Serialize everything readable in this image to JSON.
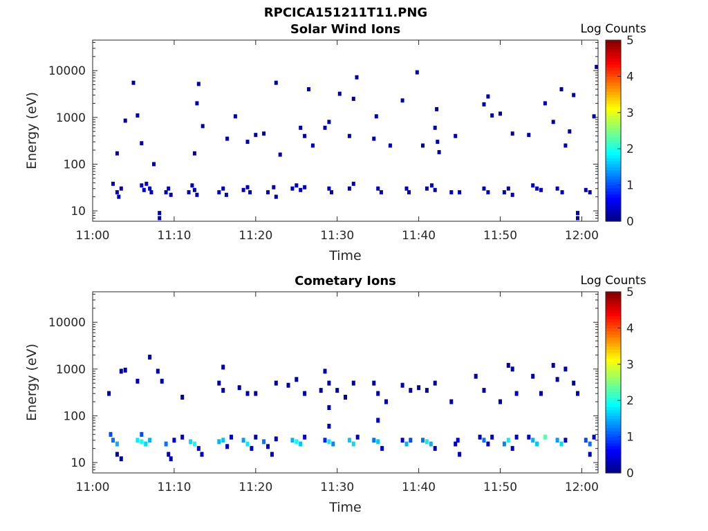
{
  "figure": {
    "filename": "RPCICA151211T11.PNG"
  },
  "colormap": {
    "name": "jet",
    "stops": [
      "#00007f",
      "#0000ff",
      "#007fff",
      "#00ffff",
      "#7fff7f",
      "#ffff00",
      "#ff7f00",
      "#ff0000",
      "#7f0000"
    ]
  },
  "chart_data": [
    {
      "type": "heatmap",
      "title": "Solar Wind Ions",
      "xlabel": "Time",
      "ylabel": "Energy (eV)",
      "yscale": "log",
      "ylim": [
        6,
        45000
      ],
      "xlim": [
        "11:00",
        "12:02"
      ],
      "xticks": [
        "11:00",
        "11:10",
        "11:20",
        "11:30",
        "11:40",
        "11:50",
        "12:00"
      ],
      "yticks": [
        10,
        100,
        1000,
        10000
      ],
      "colorbar": {
        "label": "Log Counts",
        "range": [
          0,
          5
        ],
        "ticks": [
          0,
          1,
          2,
          3,
          4,
          5
        ]
      },
      "grid": false,
      "points": [
        [
          "11:02.5",
          38,
          0.3
        ],
        [
          "11:03",
          25,
          0.3
        ],
        [
          "11:03.2",
          20,
          0.3
        ],
        [
          "11:03.5",
          30,
          0.3
        ],
        [
          "11:06",
          35,
          0.4
        ],
        [
          "11:06.3",
          28,
          0.4
        ],
        [
          "11:06.6",
          38,
          0.4
        ],
        [
          "11:07",
          30,
          0.3
        ],
        [
          "11:07.2",
          25,
          0.3
        ],
        [
          "11:09",
          25,
          0.3
        ],
        [
          "11:09.3",
          30,
          0.3
        ],
        [
          "11:09.6",
          22,
          0.3
        ],
        [
          "11:11.8",
          25,
          0.3
        ],
        [
          "11:12.2",
          35,
          0.3
        ],
        [
          "11:12.5",
          28,
          0.3
        ],
        [
          "11:12.8",
          22,
          0.3
        ],
        [
          "11:15.5",
          25,
          0.3
        ],
        [
          "11:16",
          30,
          0.3
        ],
        [
          "11:16.4",
          22,
          0.3
        ],
        [
          "11:18.5",
          28,
          0.3
        ],
        [
          "11:19",
          32,
          0.3
        ],
        [
          "11:19.3",
          25,
          0.3
        ],
        [
          "11:21.5",
          25,
          0.3
        ],
        [
          "11:22.2",
          32,
          0.3
        ],
        [
          "11:22.5",
          20,
          0.3
        ],
        [
          "11:24.5",
          30,
          0.3
        ],
        [
          "11:25",
          35,
          0.3
        ],
        [
          "11:25.5",
          28,
          0.3
        ],
        [
          "11:26",
          32,
          0.3
        ],
        [
          "11:29",
          30,
          0.3
        ],
        [
          "11:29.3",
          25,
          0.3
        ],
        [
          "11:31.5",
          30,
          0.3
        ],
        [
          "11:32",
          38,
          0.3
        ],
        [
          "11:35",
          30,
          0.3
        ],
        [
          "11:35.4",
          25,
          0.3
        ],
        [
          "11:38.5",
          30,
          0.3
        ],
        [
          "11:38.8",
          25,
          0.3
        ],
        [
          "11:41",
          30,
          0.3
        ],
        [
          "11:41.6",
          35,
          0.3
        ],
        [
          "11:42",
          28,
          0.3
        ],
        [
          "11:44",
          25,
          0.3
        ],
        [
          "11:45",
          25,
          0.3
        ],
        [
          "11:48",
          30,
          0.3
        ],
        [
          "11:48.5",
          25,
          0.3
        ],
        [
          "11:50.5",
          25,
          0.3
        ],
        [
          "11:51",
          30,
          0.3
        ],
        [
          "11:51.5",
          22,
          0.3
        ],
        [
          "11:54",
          35,
          0.3
        ],
        [
          "11:54.5",
          30,
          0.3
        ],
        [
          "11:55",
          28,
          0.3
        ],
        [
          "11:57",
          30,
          0.3
        ],
        [
          "11:57.6",
          25,
          0.3
        ],
        [
          "12:00.5",
          28,
          0.3
        ],
        [
          "12:01",
          25,
          0.3
        ],
        [
          "11:05",
          5500,
          0.2
        ],
        [
          "11:05.5",
          1100,
          0.2
        ],
        [
          "11:04",
          850,
          0.2
        ],
        [
          "11:03",
          170,
          0.2
        ],
        [
          "11:06",
          280,
          0.2
        ],
        [
          "11:07.5",
          100,
          0.2
        ],
        [
          "11:08.2",
          9,
          0.2
        ],
        [
          "11:08.2",
          7,
          0.2
        ],
        [
          "11:13",
          5200,
          0.2
        ],
        [
          "11:12.8",
          2000,
          0.2
        ],
        [
          "11:13.5",
          650,
          0.2
        ],
        [
          "11:12.5",
          170,
          0.2
        ],
        [
          "11:17.5",
          1050,
          0.2
        ],
        [
          "11:16.5",
          350,
          0.2
        ],
        [
          "11:19",
          300,
          0.2
        ],
        [
          "11:20",
          420,
          0.2
        ],
        [
          "11:22.5",
          5500,
          0.2
        ],
        [
          "11:21",
          450,
          0.2
        ],
        [
          "11:23",
          160,
          0.2
        ],
        [
          "11:25.5",
          600,
          0.2
        ],
        [
          "11:26",
          400,
          0.2
        ],
        [
          "11:26.5",
          4000,
          0.2
        ],
        [
          "11:27",
          250,
          0.2
        ],
        [
          "11:28.5",
          600,
          0.2
        ],
        [
          "11:29",
          800,
          0.2
        ],
        [
          "11:30.3",
          3200,
          0.2
        ],
        [
          "11:32.4",
          7200,
          0.2
        ],
        [
          "11:32",
          2500,
          0.2
        ],
        [
          "11:31.5",
          400,
          0.2
        ],
        [
          "11:34.8",
          1050,
          0.2
        ],
        [
          "11:34.5",
          350,
          0.2
        ],
        [
          "11:36.5",
          250,
          0.2
        ],
        [
          "11:39.8",
          9200,
          0.2
        ],
        [
          "11:38",
          2300,
          0.2
        ],
        [
          "11:40.5",
          250,
          0.2
        ],
        [
          "11:42.2",
          1500,
          0.2
        ],
        [
          "11:42",
          600,
          0.2
        ],
        [
          "11:42.3",
          300,
          0.2
        ],
        [
          "11:42.5",
          180,
          0.2
        ],
        [
          "11:44.5",
          400,
          0.2
        ],
        [
          "11:48.5",
          2800,
          0.2
        ],
        [
          "11:48",
          1900,
          0.2
        ],
        [
          "11:49",
          1100,
          0.2
        ],
        [
          "11:50",
          1200,
          0.2
        ],
        [
          "11:51.5",
          450,
          0.2
        ],
        [
          "11:53.5",
          420,
          0.2
        ],
        [
          "11:55.5",
          2000,
          0.2
        ],
        [
          "11:56.5",
          800,
          0.2
        ],
        [
          "11:57.5",
          4000,
          0.2
        ],
        [
          "11:58.5",
          500,
          0.2
        ],
        [
          "11:59",
          3000,
          0.2
        ],
        [
          "11:58",
          250,
          0.2
        ],
        [
          "12:01.5",
          1050,
          0.2
        ],
        [
          "12:01.8",
          12000,
          0.2
        ],
        [
          "11:59.5",
          7,
          0.2
        ],
        [
          "11:59.5",
          9,
          0.2
        ]
      ]
    },
    {
      "type": "heatmap",
      "title": "Cometary Ions",
      "xlabel": "Time",
      "ylabel": "Energy (eV)",
      "yscale": "log",
      "ylim": [
        6,
        45000
      ],
      "xlim": [
        "11:00",
        "12:02"
      ],
      "xticks": [
        "11:00",
        "11:10",
        "11:20",
        "11:30",
        "11:40",
        "11:50",
        "12:00"
      ],
      "yticks": [
        10,
        100,
        1000,
        10000
      ],
      "colorbar": {
        "label": "Log Counts",
        "range": [
          0,
          5
        ],
        "ticks": [
          0,
          1,
          2,
          3,
          4,
          5
        ]
      },
      "grid": false,
      "points": [
        [
          "11:02.5",
          30,
          1.2
        ],
        [
          "11:03",
          25,
          1.5
        ],
        [
          "11:03",
          15,
          0.2
        ],
        [
          "11:03.5",
          12,
          0.2
        ],
        [
          "11:02.2",
          40,
          1.0
        ],
        [
          "11:05.5",
          30,
          1.8
        ],
        [
          "11:06",
          28,
          2.0
        ],
        [
          "11:06.5",
          25,
          1.7
        ],
        [
          "11:07",
          30,
          1.5
        ],
        [
          "11:06",
          40,
          1.0
        ],
        [
          "11:09",
          25,
          1.2
        ],
        [
          "11:09.3",
          15,
          0.3
        ],
        [
          "11:09.6",
          12,
          0.3
        ],
        [
          "11:10",
          30,
          0.4
        ],
        [
          "11:11",
          35,
          0.3
        ],
        [
          "11:12",
          28,
          1.7
        ],
        [
          "11:12.5",
          25,
          1.9
        ],
        [
          "11:13",
          20,
          0.5
        ],
        [
          "11:13.4",
          15,
          0.3
        ],
        [
          "11:15.5",
          28,
          1.5
        ],
        [
          "11:16",
          30,
          1.6
        ],
        [
          "11:16.5",
          22,
          0.3
        ],
        [
          "11:17",
          35,
          0.4
        ],
        [
          "11:18.5",
          30,
          1.4
        ],
        [
          "11:19",
          25,
          1.8
        ],
        [
          "11:19.5",
          20,
          0.4
        ],
        [
          "11:20",
          35,
          0.3
        ],
        [
          "11:21",
          28,
          1.2
        ],
        [
          "11:21.5",
          22,
          0.4
        ],
        [
          "11:22",
          15,
          0.3
        ],
        [
          "11:22.5",
          32,
          0.4
        ],
        [
          "11:24.5",
          30,
          1.5
        ],
        [
          "11:25",
          28,
          1.9
        ],
        [
          "11:25.5",
          25,
          1.6
        ],
        [
          "11:26",
          35,
          0.4
        ],
        [
          "11:28.5",
          30,
          0.8
        ],
        [
          "11:29",
          28,
          1.8
        ],
        [
          "11:29.5",
          25,
          1.3
        ],
        [
          "11:29",
          60,
          0.3
        ],
        [
          "11:29",
          150,
          0.2
        ],
        [
          "11:31.5",
          30,
          1.6
        ],
        [
          "11:32",
          25,
          1.7
        ],
        [
          "11:32.5",
          35,
          0.4
        ],
        [
          "11:34.5",
          30,
          1.2
        ],
        [
          "11:35",
          28,
          1.6
        ],
        [
          "11:35.5",
          20,
          0.4
        ],
        [
          "11:35",
          80,
          0.3
        ],
        [
          "11:38",
          30,
          0.4
        ],
        [
          "11:38.5",
          25,
          1.5
        ],
        [
          "11:39",
          30,
          1.0
        ],
        [
          "11:40.5",
          30,
          1.2
        ],
        [
          "11:41",
          28,
          1.8
        ],
        [
          "11:41.5",
          25,
          1.5
        ],
        [
          "11:42",
          20,
          0.3
        ],
        [
          "11:44.5",
          25,
          0.3
        ],
        [
          "11:45",
          15,
          0.3
        ],
        [
          "11:44.8",
          30,
          0.5
        ],
        [
          "11:47.5",
          35,
          0.3
        ],
        [
          "11:48",
          30,
          1.2
        ],
        [
          "11:48.5",
          25,
          0.3
        ],
        [
          "11:49",
          35,
          0.3
        ],
        [
          "11:50.5",
          25,
          1.3
        ],
        [
          "11:51",
          30,
          1.8
        ],
        [
          "11:51.5",
          20,
          0.4
        ],
        [
          "11:52",
          35,
          0.3
        ],
        [
          "11:53.5",
          35,
          0.4
        ],
        [
          "11:54",
          30,
          1.5
        ],
        [
          "11:54.5",
          25,
          1.6
        ],
        [
          "11:55.5",
          35,
          2.3
        ],
        [
          "11:57",
          30,
          1.4
        ],
        [
          "11:57.5",
          25,
          1.7
        ],
        [
          "11:58",
          30,
          0.4
        ],
        [
          "12:00.5",
          30,
          1.0
        ],
        [
          "12:01",
          25,
          1.2
        ],
        [
          "12:01",
          15,
          0.3
        ],
        [
          "12:01.5",
          35,
          0.3
        ],
        [
          "11:02",
          300,
          0.2
        ],
        [
          "11:03.5",
          900,
          0.2
        ],
        [
          "11:04",
          950,
          0.2
        ],
        [
          "11:05.5",
          550,
          0.2
        ],
        [
          "11:07",
          1800,
          0.2
        ],
        [
          "11:08",
          900,
          0.2
        ],
        [
          "11:08.5",
          550,
          0.2
        ],
        [
          "11:11",
          250,
          0.2
        ],
        [
          "11:16",
          1100,
          0.2
        ],
        [
          "11:15.5",
          500,
          0.2
        ],
        [
          "11:16",
          350,
          0.2
        ],
        [
          "11:18",
          400,
          0.2
        ],
        [
          "11:19",
          300,
          0.2
        ],
        [
          "11:20",
          300,
          0.2
        ],
        [
          "11:22.5",
          500,
          0.2
        ],
        [
          "11:24",
          450,
          0.2
        ],
        [
          "11:25",
          600,
          0.2
        ],
        [
          "11:26",
          300,
          0.2
        ],
        [
          "11:28",
          350,
          0.2
        ],
        [
          "11:28.5",
          900,
          0.2
        ],
        [
          "11:29",
          500,
          0.2
        ],
        [
          "11:30",
          350,
          0.2
        ],
        [
          "11:31",
          250,
          0.2
        ],
        [
          "11:32",
          500,
          0.2
        ],
        [
          "11:34.5",
          500,
          0.2
        ],
        [
          "11:35",
          300,
          0.2
        ],
        [
          "11:36",
          200,
          0.2
        ],
        [
          "11:38",
          450,
          0.2
        ],
        [
          "11:39",
          350,
          0.2
        ],
        [
          "11:40",
          400,
          0.2
        ],
        [
          "11:41",
          350,
          0.2
        ],
        [
          "11:42",
          500,
          0.2
        ],
        [
          "11:44",
          200,
          0.2
        ],
        [
          "11:47",
          700,
          0.2
        ],
        [
          "11:48",
          350,
          0.2
        ],
        [
          "11:50",
          200,
          0.2
        ],
        [
          "11:51",
          1200,
          0.2
        ],
        [
          "11:51.5",
          1000,
          0.2
        ],
        [
          "11:52",
          300,
          0.2
        ],
        [
          "11:54",
          700,
          0.2
        ],
        [
          "11:55",
          300,
          0.2
        ],
        [
          "11:56.5",
          1200,
          0.2
        ],
        [
          "11:57",
          600,
          0.2
        ],
        [
          "11:58",
          1000,
          0.2
        ],
        [
          "11:59",
          500,
          0.2
        ],
        [
          "11:59.5",
          300,
          0.2
        ]
      ]
    }
  ]
}
